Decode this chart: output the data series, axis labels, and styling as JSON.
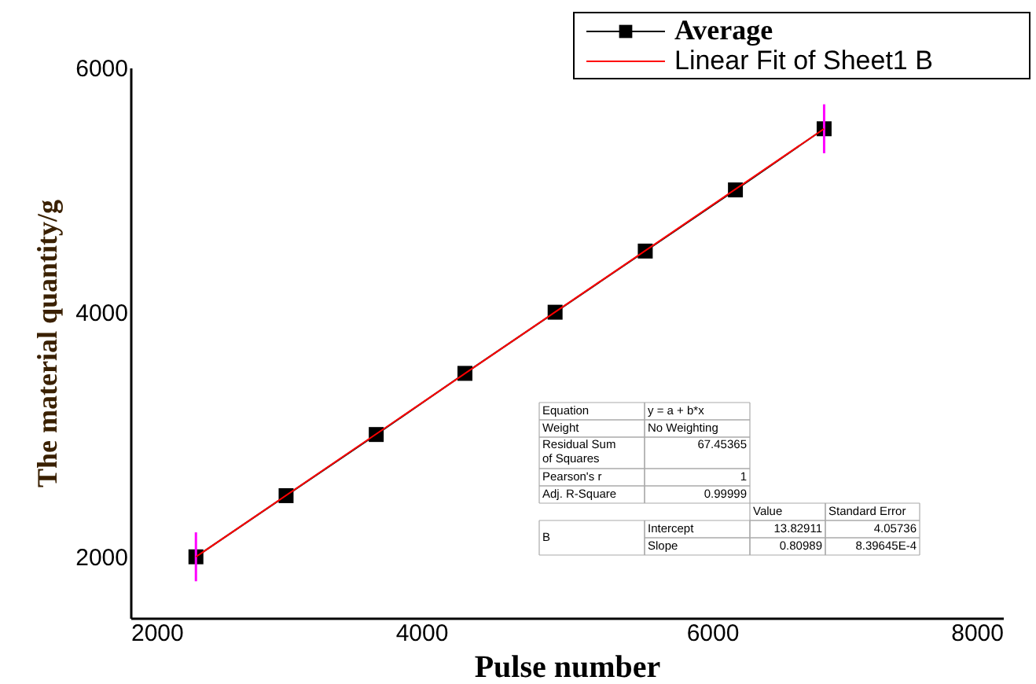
{
  "chart_data": {
    "type": "line",
    "xlabel": "Pulse number",
    "ylabel": "The material quantity/g",
    "xlim": [
      2000,
      8000
    ],
    "ylim": [
      1500,
      6000
    ],
    "xticks": [
      2000,
      4000,
      6000,
      8000
    ],
    "yticks": [
      2000,
      4000,
      6000
    ],
    "grid": false,
    "legend": "top right",
    "series": [
      {
        "name": "Average",
        "color": "#000000",
        "marker": "square",
        "x": [
          2450,
          3070,
          3690,
          4300,
          4920,
          5540,
          6160,
          6770
        ],
        "values": [
          2000,
          2500,
          3000,
          3500,
          4000,
          4500,
          5000,
          5500
        ],
        "errors": [
          200,
          null,
          null,
          null,
          null,
          null,
          null,
          200
        ]
      },
      {
        "name": "Linear Fit of Sheet1 B",
        "color": "#ff0000",
        "marker": "none",
        "x": [
          2450,
          6770
        ],
        "values": [
          2000,
          5500
        ]
      }
    ],
    "annotations": [
      "Equation",
      "y = a + b*x",
      "Weight",
      "No Weighting",
      "Residual Sum of Squares",
      "67.45365",
      "Pearson's r",
      "1",
      "Adj. R-Square",
      "0.99999",
      "Value",
      "Standard Error",
      "B",
      "Intercept",
      "13.82911",
      "4.05736",
      "Slope",
      "0.80989",
      "8.39645E-4"
    ]
  }
}
